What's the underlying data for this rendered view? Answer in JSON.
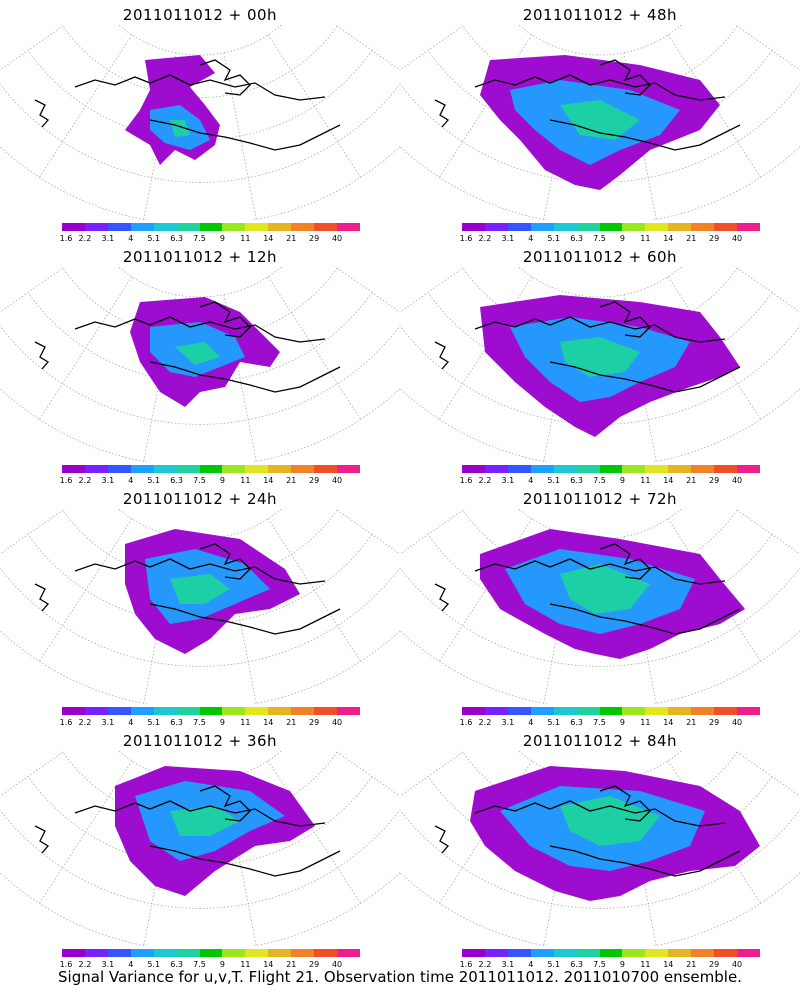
{
  "panels": [
    {
      "title": "2011011012 + 00h"
    },
    {
      "title": "2011011012 + 48h"
    },
    {
      "title": "2011011012 + 12h"
    },
    {
      "title": "2011011012 + 60h"
    },
    {
      "title": "2011011012 + 24h"
    },
    {
      "title": "2011011012 + 72h"
    },
    {
      "title": "2011011012 + 36h"
    },
    {
      "title": "2011011012 + 84h"
    }
  ],
  "colorbar": {
    "colors": [
      "#9900cc",
      "#7a1fff",
      "#3455ff",
      "#1ea0ff",
      "#1ec8d2",
      "#1ed2a0",
      "#00c800",
      "#9be61e",
      "#e1e61e",
      "#e6b41e",
      "#f08228",
      "#f05028",
      "#f01e8c"
    ],
    "labels": [
      "1.6",
      "2.2",
      "3.1",
      "4",
      "5.1",
      "6.3",
      "7.5",
      "9",
      "11",
      "14",
      "21",
      "29",
      "40"
    ]
  },
  "footer": "Signal Variance for u,v,T. Flight 21. Observation time 2011011012. 2011010700 ensemble."
}
